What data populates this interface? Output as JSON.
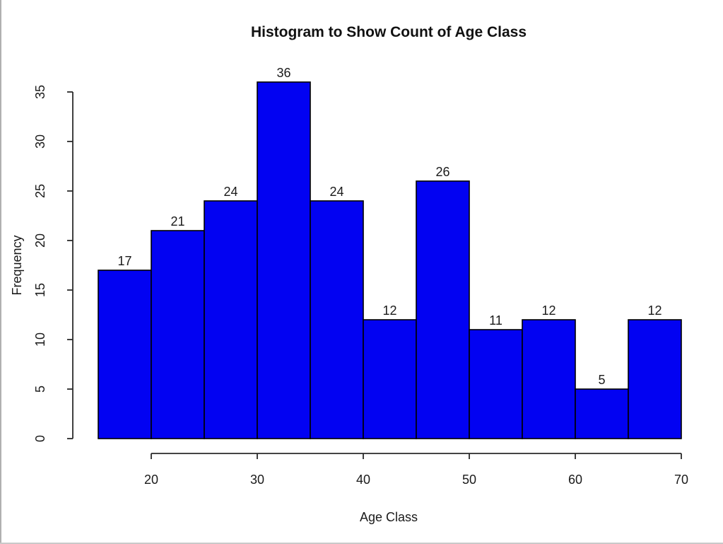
{
  "page": {
    "background_color": "#ffffff",
    "left_edge_line_color": "#b0b0b0",
    "bottom_edge_line_color": "#c9c9c9"
  },
  "chart_data": {
    "type": "bar",
    "title": "Histogram to Show Count of Age Class",
    "xlabel": "Age Class",
    "ylabel": "Frequency",
    "bin_start": 15,
    "bin_width": 5,
    "categories": [
      "15-20",
      "20-25",
      "25-30",
      "30-35",
      "35-40",
      "40-45",
      "45-50",
      "50-55",
      "55-60",
      "60-65",
      "65-70"
    ],
    "values": [
      17,
      21,
      24,
      36,
      24,
      12,
      26,
      11,
      12,
      5,
      12
    ],
    "bar_labels": [
      "17",
      "21",
      "24",
      "36",
      "24",
      "12",
      "26",
      "11",
      "12",
      "5",
      "12"
    ],
    "x_ticks": [
      20,
      30,
      40,
      50,
      60,
      70
    ],
    "y_ticks": [
      0,
      5,
      10,
      15,
      20,
      25,
      30,
      35
    ],
    "xlim": [
      15,
      70
    ],
    "ylim": [
      0,
      35
    ],
    "grid": false,
    "legend": null,
    "bar_fill_color": "#0202f2",
    "bar_stroke_color": "#000000",
    "axis_color": "#2a2a2a",
    "text_color": "#1a1a1a"
  }
}
